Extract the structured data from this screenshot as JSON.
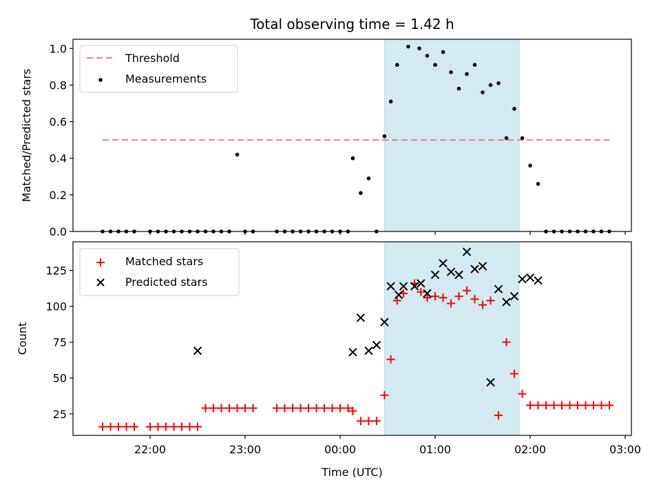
{
  "chart_data": [
    {
      "type": "scatter",
      "title": "Total observing time = 1.42 h",
      "xlabel": "",
      "ylabel": "Matched/Predicted stars",
      "ylim": [
        0,
        1.05
      ],
      "yticks": [
        "0.0",
        "0.2",
        "0.4",
        "0.6",
        "0.8",
        "1.0"
      ],
      "legend": "upper left",
      "highlight": {
        "start": "00:28",
        "end": "01:53",
        "color": "#d3eaf0"
      },
      "threshold": {
        "name": "Threshold",
        "value": 0.5,
        "x_start": "21:30",
        "x_end": "02:50",
        "color": "#f08080"
      },
      "series": [
        {
          "name": "Measurements",
          "color": "#000000",
          "marker": "dot",
          "x": [
            "21:30",
            "21:35",
            "21:40",
            "21:45",
            "21:50",
            "22:00",
            "22:05",
            "22:10",
            "22:15",
            "22:20",
            "22:25",
            "22:30",
            "22:35",
            "22:40",
            "22:45",
            "22:50",
            "23:00",
            "23:05",
            "22:55",
            "23:20",
            "23:25",
            "23:30",
            "23:35",
            "23:40",
            "23:45",
            "23:50",
            "23:55",
            "00:00",
            "00:05",
            "00:08",
            "00:13",
            "00:18",
            "00:23",
            "00:28",
            "00:32",
            "00:36",
            "00:43",
            "00:50",
            "00:55",
            "01:00",
            "01:05",
            "01:10",
            "01:15",
            "01:20",
            "01:25",
            "01:30",
            "01:35",
            "01:40",
            "01:45",
            "01:50",
            "01:55",
            "02:00",
            "02:05",
            "02:10",
            "02:15",
            "02:20",
            "02:25",
            "02:30",
            "02:35",
            "02:40",
            "02:45",
            "02:50"
          ],
          "y": [
            0,
            0,
            0,
            0,
            0,
            0,
            0,
            0,
            0,
            0,
            0,
            0,
            0,
            0,
            0,
            0,
            0,
            0,
            0.42,
            0,
            0,
            0,
            0,
            0,
            0,
            0,
            0,
            0,
            0,
            0.4,
            0.21,
            0.29,
            0,
            0.52,
            0.71,
            0.91,
            1.01,
            1.0,
            0.96,
            0.91,
            0.98,
            0.87,
            0.78,
            0.86,
            0.91,
            0.76,
            0.8,
            0.81,
            0.51,
            0.67,
            0.51,
            0.36,
            0.26,
            0,
            0,
            0,
            0,
            0,
            0,
            0,
            0,
            0
          ]
        }
      ]
    },
    {
      "type": "scatter",
      "xlabel": "Time (UTC)",
      "ylabel": "Count",
      "ylim": [
        10,
        145
      ],
      "yticks": [
        "25",
        "50",
        "75",
        "100",
        "125"
      ],
      "xticks": [
        "22:00",
        "23:00",
        "00:00",
        "01:00",
        "02:00",
        "03:00"
      ],
      "legend": "upper left",
      "series": [
        {
          "name": "Matched stars",
          "color": "#ff0000",
          "marker": "plus",
          "x": [
            "21:30",
            "21:35",
            "21:40",
            "21:45",
            "21:50",
            "22:00",
            "22:05",
            "22:10",
            "22:15",
            "22:20",
            "22:25",
            "22:30",
            "22:35",
            "22:40",
            "22:45",
            "22:50",
            "22:55",
            "23:00",
            "23:05",
            "23:20",
            "23:25",
            "23:30",
            "23:35",
            "23:40",
            "23:45",
            "23:50",
            "23:55",
            "00:00",
            "00:05",
            "00:08",
            "00:13",
            "00:18",
            "00:23",
            "00:28",
            "00:32",
            "00:36",
            "00:40",
            "00:47",
            "00:51",
            "00:55",
            "01:00",
            "01:05",
            "01:10",
            "01:15",
            "01:20",
            "01:25",
            "01:30",
            "01:35",
            "01:40",
            "01:45",
            "01:50",
            "01:55",
            "02:00",
            "02:05",
            "02:10",
            "02:15",
            "02:20",
            "02:25",
            "02:30",
            "02:35",
            "02:40",
            "02:45",
            "02:50"
          ],
          "y": [
            16,
            16,
            16,
            16,
            16,
            16,
            16,
            16,
            16,
            16,
            16,
            16,
            29,
            29,
            29,
            29,
            29,
            29,
            29,
            29,
            29,
            29,
            29,
            29,
            29,
            29,
            29,
            29,
            29,
            27,
            20,
            20,
            20,
            38,
            63,
            104,
            109,
            116,
            110,
            106,
            107,
            106,
            102,
            107,
            111,
            105,
            101,
            104,
            24,
            75,
            53,
            39,
            31,
            31,
            31,
            31,
            31,
            31,
            31,
            31,
            31,
            31,
            31
          ]
        },
        {
          "name": "Predicted stars",
          "color": "#000000",
          "marker": "x",
          "x": [
            "22:30",
            "00:08",
            "00:13",
            "00:18",
            "00:23",
            "00:28",
            "00:32",
            "00:37",
            "00:40",
            "00:47",
            "00:51",
            "00:55",
            "01:00",
            "01:05",
            "01:10",
            "01:15",
            "01:20",
            "01:25",
            "01:30",
            "01:35",
            "01:40",
            "01:45",
            "01:50",
            "01:55",
            "02:00",
            "02:05"
          ],
          "y": [
            69,
            68,
            92,
            69,
            73,
            89,
            114,
            108,
            114,
            114,
            116,
            109,
            122,
            130,
            124,
            122,
            138,
            126,
            128,
            47,
            112,
            103,
            107,
            119,
            120,
            118
          ]
        }
      ]
    }
  ]
}
